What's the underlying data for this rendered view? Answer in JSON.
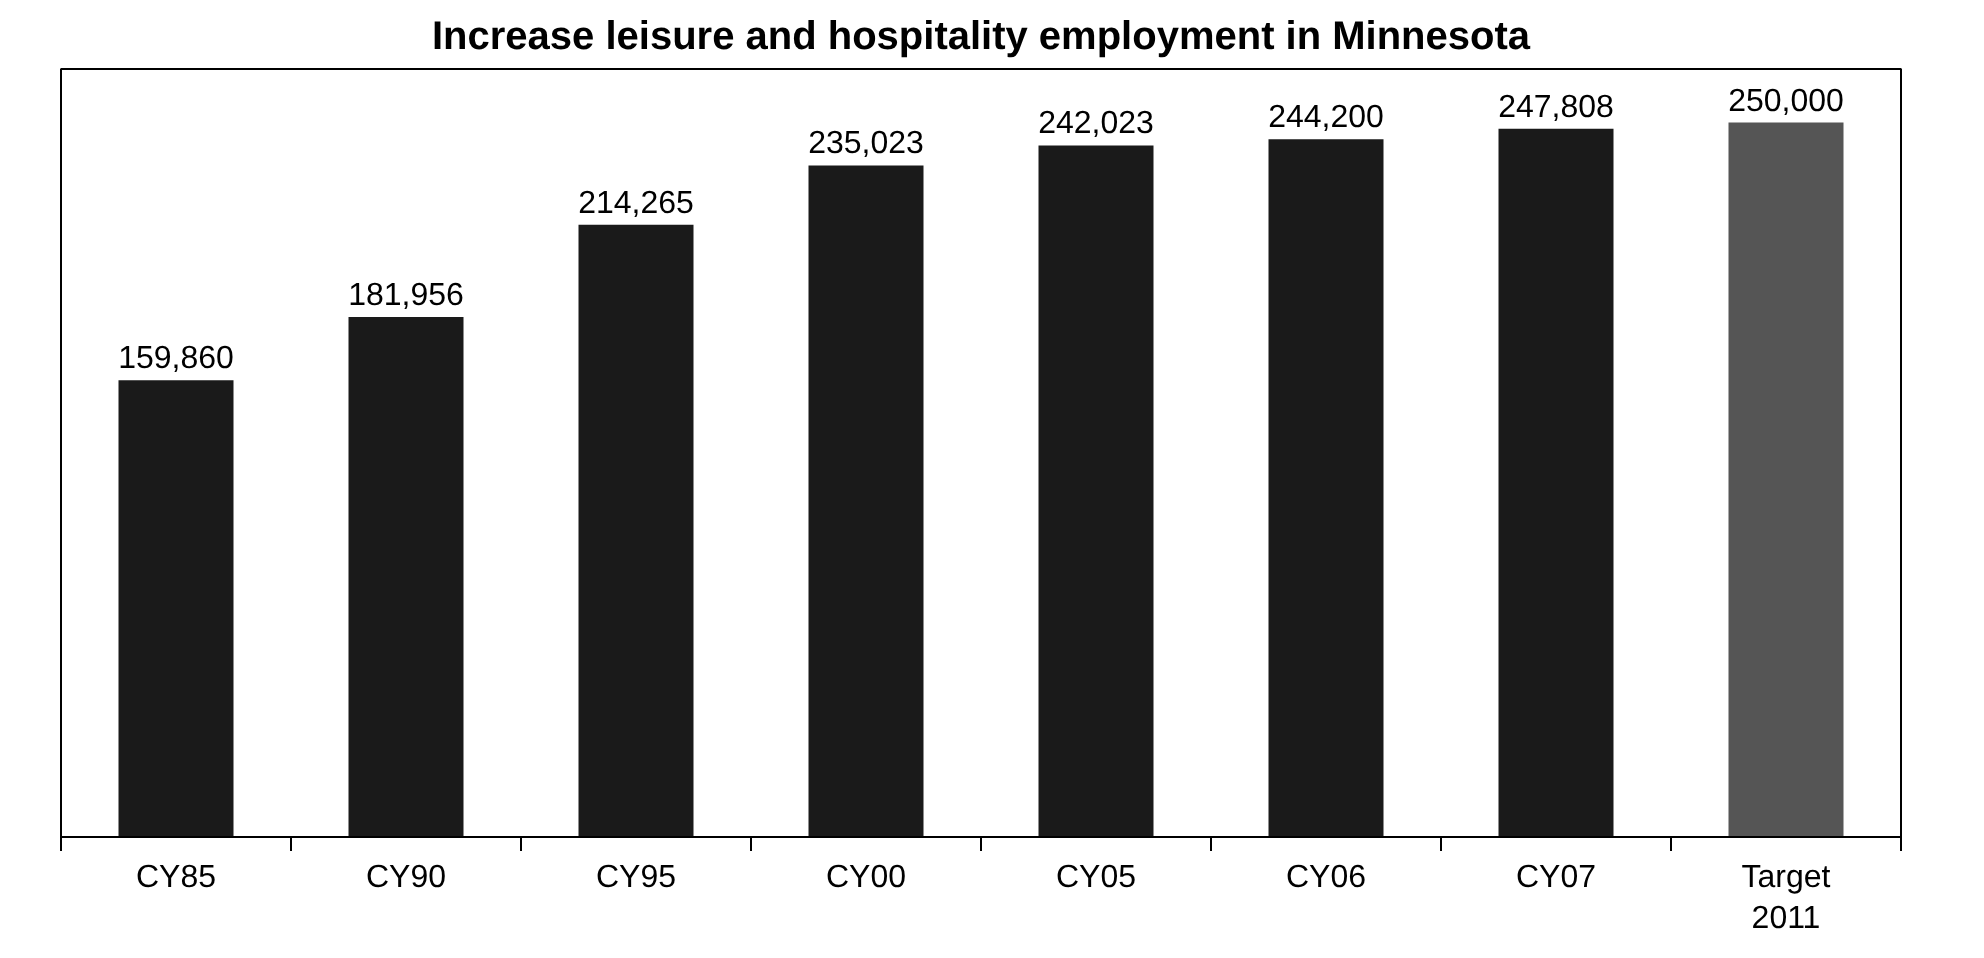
{
  "chart_data": {
    "type": "bar",
    "title": "Increase leisure and hospitality employment in Minnesota",
    "categories": [
      "CY85",
      "CY90",
      "CY95",
      "CY00",
      "CY05",
      "CY06",
      "CY07",
      "Target\n2011"
    ],
    "values": [
      159860,
      181956,
      214265,
      235023,
      242023,
      244200,
      247808,
      250000
    ],
    "colors": [
      "#1a1a1a",
      "#1a1a1a",
      "#1a1a1a",
      "#1a1a1a",
      "#1a1a1a",
      "#1a1a1a",
      "#1a1a1a",
      "#555555"
    ],
    "value_labels": [
      "159,860",
      "181,956",
      "214,265",
      "235,023",
      "242,023",
      "244,200",
      "247,808",
      "250,000"
    ],
    "grid": false,
    "tick_labels": "x"
  }
}
